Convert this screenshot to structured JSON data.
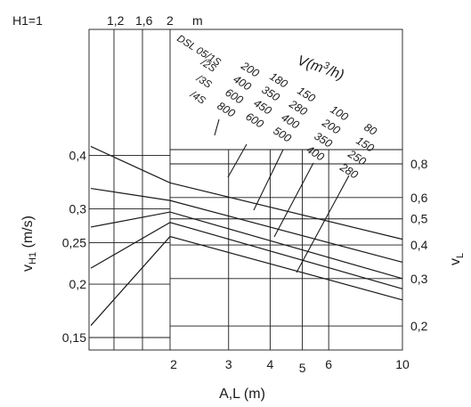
{
  "chart_data": {
    "type": "line",
    "title": "",
    "top_axis": {
      "label": "H1=1",
      "ticks": [
        "1,2",
        "1,6",
        "2"
      ],
      "unit": "m"
    },
    "left_axis": {
      "label": "vH1 (m/s)",
      "label_main": "v",
      "label_sub": "H1",
      "label_rest": " (m/s)",
      "scale": "log",
      "ticks": [
        {
          "value": 0.4,
          "label": "0,4"
        },
        {
          "value": 0.3,
          "label": "0,3"
        },
        {
          "value": 0.25,
          "label": "0,25"
        },
        {
          "value": 0.2,
          "label": "0,2"
        },
        {
          "value": 0.15,
          "label": "0,15"
        }
      ]
    },
    "right_axis": {
      "label": "vL",
      "label_main": "v",
      "label_sub": "L",
      "scale": "log",
      "ticks": [
        {
          "value": 0.8,
          "label": "0,8"
        },
        {
          "value": 0.6,
          "label": "0,6"
        },
        {
          "value": 0.5,
          "label": "0,5"
        },
        {
          "value": 0.4,
          "label": "0,4"
        },
        {
          "value": 0.3,
          "label": "0,3"
        },
        {
          "value": 0.2,
          "label": "0,2"
        }
      ]
    },
    "bottom_axis": {
      "label": "A,L (m)",
      "scale": "log",
      "ticks": [
        {
          "value": 2,
          "label": "2"
        },
        {
          "value": 3,
          "label": "3"
        },
        {
          "value": 4,
          "label": "4"
        },
        {
          "value": 5,
          "label": "5"
        },
        {
          "value": 6,
          "label": "6"
        },
        {
          "value": 10,
          "label": "10"
        }
      ]
    },
    "flow_title": {
      "main": "V(m",
      "sup": "3",
      "rest": "/h)"
    },
    "models": [
      "DSL 05/1S",
      "/2S",
      "/3S",
      "/4S"
    ],
    "flow_columns": [
      [
        "200",
        "400",
        "600",
        "800"
      ],
      [
        "180",
        "350",
        "450",
        "600"
      ],
      [
        "150",
        "280",
        "400",
        "500"
      ],
      [
        "100",
        "200",
        "350",
        "400"
      ],
      [
        "80",
        "150",
        "250",
        "280"
      ]
    ],
    "series": [
      {
        "v_at_H1": 0.42,
        "vL_at_2m": 0.68,
        "vL_at_10m": 0.42
      },
      {
        "v_at_H1": 0.335,
        "vL_at_2m": 0.585,
        "vL_at_10m": 0.345
      },
      {
        "v_at_H1": 0.272,
        "vL_at_2m": 0.53,
        "vL_at_10m": 0.3
      },
      {
        "v_at_H1": 0.218,
        "vL_at_2m": 0.485,
        "vL_at_10m": 0.275
      },
      {
        "v_at_H1": 0.16,
        "vL_at_2m": 0.43,
        "vL_at_10m": 0.25
      }
    ]
  }
}
